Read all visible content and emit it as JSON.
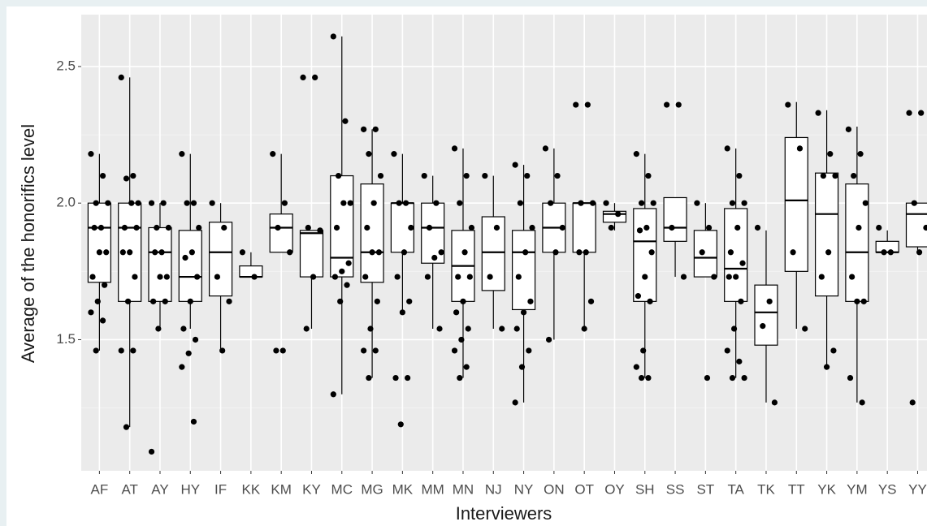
{
  "chart_data": {
    "type": "box",
    "ylabel": "Average of the honorifics level",
    "xlabel": "Interviewers",
    "categories": [
      "AF",
      "AT",
      "AY",
      "HY",
      "IF",
      "KK",
      "KM",
      "KY",
      "MC",
      "MG",
      "MK",
      "MM",
      "MN",
      "NJ",
      "NY",
      "ON",
      "OT",
      "OY",
      "SH",
      "SS",
      "ST",
      "TA",
      "TK",
      "TT",
      "YK",
      "YM",
      "YS",
      "YY"
    ],
    "boxes": [
      {
        "low": 1.46,
        "q1": 1.71,
        "median": 1.91,
        "q3": 2.0,
        "high": 2.18,
        "points": [
          2.18,
          2.1,
          2.0,
          2.0,
          1.91,
          1.91,
          1.82,
          1.82,
          1.73,
          1.7,
          1.64,
          1.6,
          1.57,
          1.46
        ]
      },
      {
        "low": 1.18,
        "q1": 1.64,
        "median": 1.91,
        "q3": 2.0,
        "high": 2.46,
        "points": [
          2.46,
          2.1,
          2.09,
          2.0,
          2.0,
          1.91,
          1.91,
          1.82,
          1.82,
          1.73,
          1.64,
          1.46,
          1.46,
          1.18
        ]
      },
      {
        "low": 1.54,
        "q1": 1.64,
        "median": 1.82,
        "q3": 1.91,
        "high": 2.0,
        "points": [
          2.0,
          2.0,
          1.91,
          1.91,
          1.82,
          1.82,
          1.73,
          1.73,
          1.64,
          1.64,
          1.54,
          1.09
        ]
      },
      {
        "low": 1.54,
        "q1": 1.64,
        "median": 1.73,
        "q3": 1.9,
        "high": 2.18,
        "points": [
          2.18,
          2.0,
          2.0,
          1.91,
          1.82,
          1.8,
          1.73,
          1.64,
          1.54,
          1.5,
          1.45,
          1.4,
          1.2
        ]
      },
      {
        "low": 1.46,
        "q1": 1.66,
        "median": 1.82,
        "q3": 1.93,
        "high": 2.0,
        "points": [
          2.0,
          1.91,
          1.73,
          1.64,
          1.46
        ]
      },
      {
        "low": 1.73,
        "q1": 1.73,
        "median": 1.73,
        "q3": 1.77,
        "high": 1.82,
        "points": [
          1.82,
          1.73
        ]
      },
      {
        "low": 1.82,
        "q1": 1.82,
        "median": 1.91,
        "q3": 1.96,
        "high": 2.18,
        "points": [
          2.18,
          2.0,
          1.91,
          1.82,
          1.46,
          1.46
        ]
      },
      {
        "low": 1.54,
        "q1": 1.73,
        "median": 1.89,
        "q3": 1.9,
        "high": 1.9,
        "points": [
          2.46,
          2.46,
          1.91,
          1.9,
          1.73,
          1.54
        ]
      },
      {
        "low": 1.3,
        "q1": 1.73,
        "median": 1.8,
        "q3": 2.1,
        "high": 2.61,
        "points": [
          2.61,
          2.3,
          2.1,
          2.0,
          2.0,
          1.91,
          1.78,
          1.75,
          1.73,
          1.7,
          1.64,
          1.3
        ]
      },
      {
        "low": 1.36,
        "q1": 1.71,
        "median": 1.82,
        "q3": 2.07,
        "high": 2.27,
        "points": [
          2.27,
          2.27,
          2.18,
          2.1,
          2.0,
          1.91,
          1.82,
          1.82,
          1.73,
          1.64,
          1.54,
          1.46,
          1.46,
          1.36
        ]
      },
      {
        "low": 1.6,
        "q1": 1.82,
        "median": 2.0,
        "q3": 2.0,
        "high": 2.18,
        "points": [
          2.18,
          2.0,
          2.0,
          1.91,
          1.82,
          1.73,
          1.64,
          1.6,
          1.36,
          1.36,
          1.19
        ]
      },
      {
        "low": 1.54,
        "q1": 1.78,
        "median": 1.91,
        "q3": 2.0,
        "high": 2.1,
        "points": [
          2.1,
          2.0,
          1.91,
          1.82,
          1.8,
          1.73,
          1.54
        ]
      },
      {
        "low": 1.36,
        "q1": 1.64,
        "median": 1.77,
        "q3": 1.9,
        "high": 2.2,
        "points": [
          2.2,
          2.1,
          2.0,
          1.91,
          1.82,
          1.73,
          1.73,
          1.64,
          1.6,
          1.54,
          1.5,
          1.46,
          1.4,
          1.36
        ]
      },
      {
        "low": 1.54,
        "q1": 1.68,
        "median": 1.82,
        "q3": 1.95,
        "high": 2.1,
        "points": [
          2.1,
          1.91,
          1.73,
          1.54
        ]
      },
      {
        "low": 1.27,
        "q1": 1.61,
        "median": 1.82,
        "q3": 1.9,
        "high": 2.14,
        "points": [
          2.14,
          2.1,
          2.0,
          1.91,
          1.82,
          1.73,
          1.64,
          1.6,
          1.54,
          1.46,
          1.4,
          1.27
        ]
      },
      {
        "low": 1.5,
        "q1": 1.82,
        "median": 1.91,
        "q3": 2.0,
        "high": 2.2,
        "points": [
          2.2,
          2.1,
          2.0,
          1.91,
          1.82,
          1.5
        ]
      },
      {
        "low": 1.54,
        "q1": 1.82,
        "median": 2.0,
        "q3": 2.0,
        "high": 2.0,
        "points": [
          2.36,
          2.36,
          2.0,
          2.0,
          1.82,
          1.82,
          1.64,
          1.54
        ]
      },
      {
        "low": 1.9,
        "q1": 1.93,
        "median": 1.96,
        "q3": 1.97,
        "high": 2.0,
        "points": [
          2.0,
          1.96,
          1.91
        ]
      },
      {
        "low": 1.36,
        "q1": 1.64,
        "median": 1.86,
        "q3": 1.98,
        "high": 2.18,
        "points": [
          2.18,
          2.1,
          2.0,
          2.0,
          1.91,
          1.9,
          1.82,
          1.73,
          1.66,
          1.64,
          1.46,
          1.4,
          1.36,
          1.36
        ]
      },
      {
        "low": 1.73,
        "q1": 1.86,
        "median": 1.91,
        "q3": 2.02,
        "high": 2.02,
        "points": [
          2.36,
          2.36,
          1.91,
          1.73
        ]
      },
      {
        "low": 1.73,
        "q1": 1.73,
        "median": 1.8,
        "q3": 1.9,
        "high": 2.0,
        "points": [
          2.0,
          1.91,
          1.82,
          1.73,
          1.36
        ]
      },
      {
        "low": 1.36,
        "q1": 1.64,
        "median": 1.76,
        "q3": 1.98,
        "high": 2.2,
        "points": [
          2.2,
          2.1,
          2.0,
          2.0,
          1.91,
          1.82,
          1.78,
          1.73,
          1.73,
          1.64,
          1.54,
          1.46,
          1.42,
          1.36,
          1.36
        ]
      },
      {
        "low": 1.27,
        "q1": 1.48,
        "median": 1.6,
        "q3": 1.7,
        "high": 1.9,
        "points": [
          1.91,
          1.64,
          1.55,
          1.27
        ]
      },
      {
        "low": 1.54,
        "q1": 1.75,
        "median": 2.01,
        "q3": 2.24,
        "high": 2.37,
        "points": [
          2.36,
          2.2,
          1.82,
          1.54
        ]
      },
      {
        "low": 1.4,
        "q1": 1.66,
        "median": 1.96,
        "q3": 2.11,
        "high": 2.34,
        "points": [
          2.33,
          2.18,
          2.1,
          2.1,
          1.82,
          1.73,
          1.46,
          1.4
        ]
      },
      {
        "low": 1.27,
        "q1": 1.64,
        "median": 1.82,
        "q3": 2.07,
        "high": 2.28,
        "points": [
          2.27,
          2.18,
          2.1,
          2.0,
          1.91,
          1.73,
          1.64,
          1.64,
          1.36,
          1.27
        ]
      },
      {
        "low": 1.82,
        "q1": 1.82,
        "median": 1.82,
        "q3": 1.86,
        "high": 1.9,
        "points": [
          1.91,
          1.82,
          1.82
        ]
      },
      {
        "low": 1.82,
        "q1": 1.84,
        "median": 1.96,
        "q3": 2.0,
        "high": 2.0,
        "points": [
          2.33,
          2.33,
          2.0,
          1.91,
          1.82,
          1.27
        ]
      }
    ],
    "ylim": [
      1.02,
      2.69
    ],
    "yticks": [
      1.5,
      {
        "value": 2,
        "label": "2.0"
      },
      2.5
    ],
    "minor_yticks": [
      1.25,
      1.75,
      2.25
    ],
    "grid": true,
    "box_fill": "#ffffff",
    "point_color": "#000000",
    "panel_color": "#ebebeb"
  }
}
